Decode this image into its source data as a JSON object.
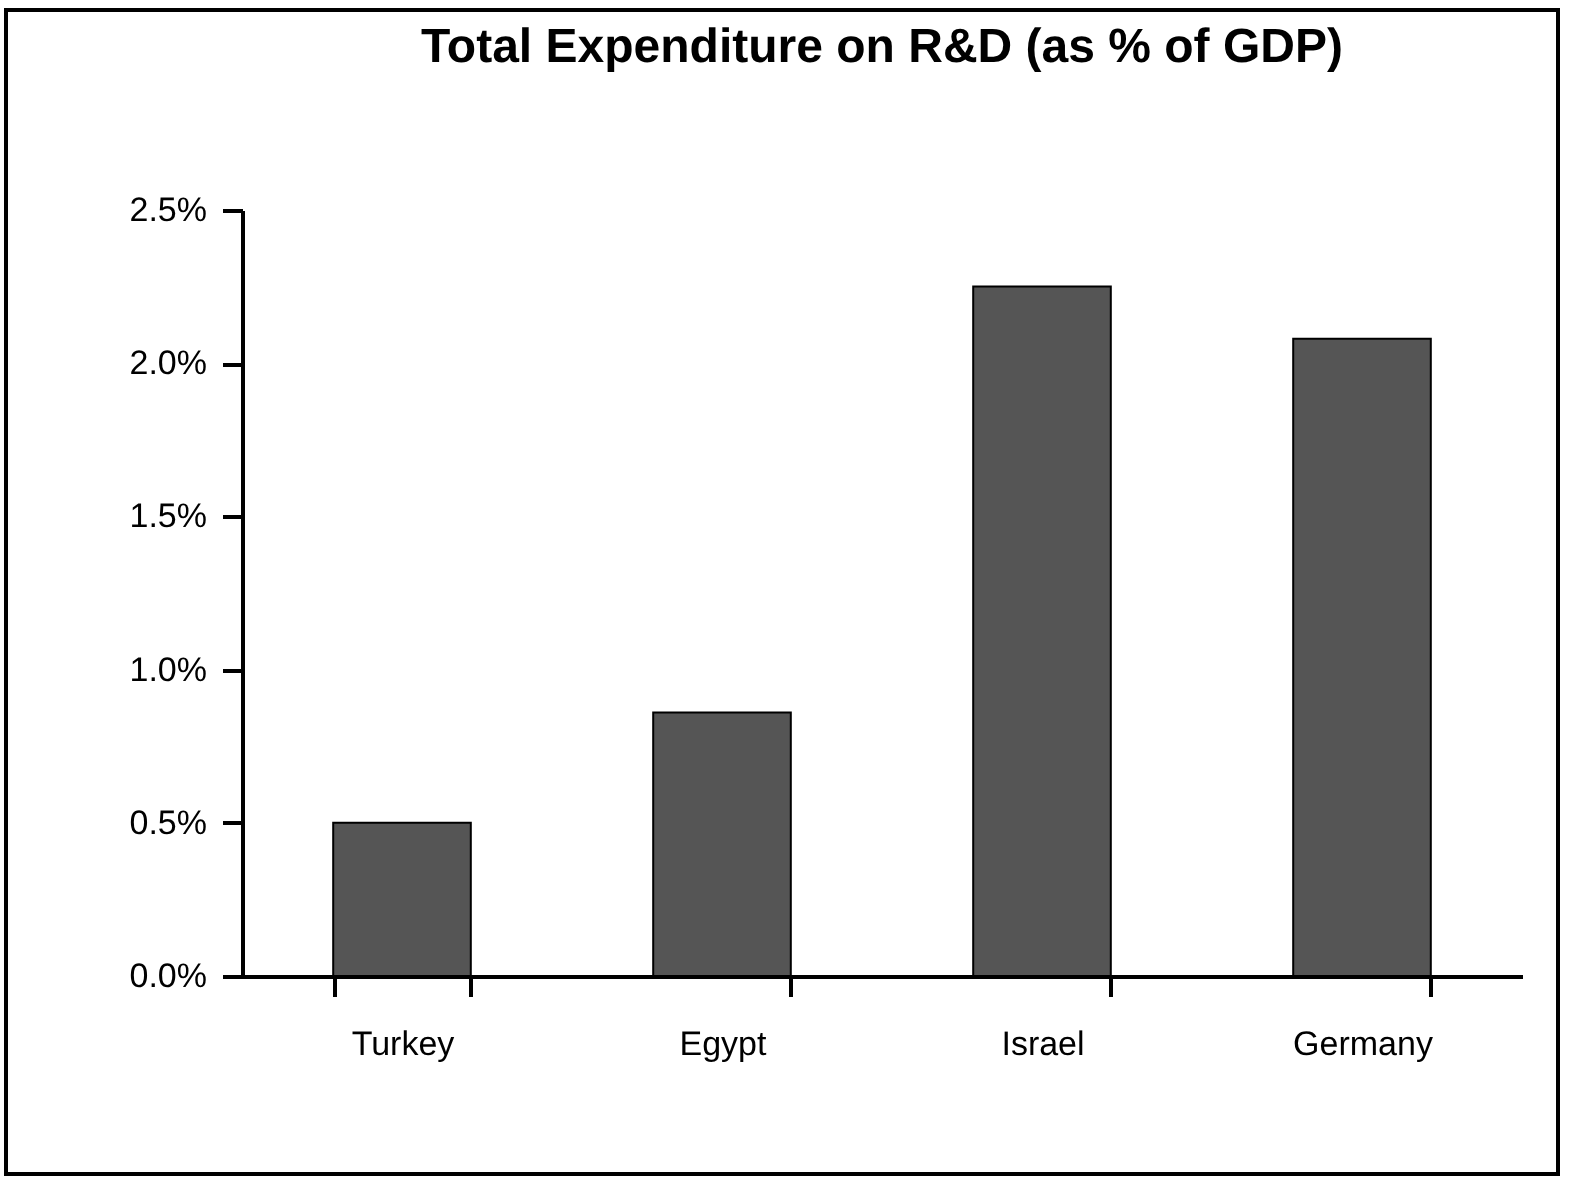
{
  "chart_data": {
    "type": "bar",
    "title": "Total Expenditure on R&D (as % of GDP)",
    "categories": [
      "Turkey",
      "Egypt",
      "Israel",
      "Germany"
    ],
    "values": [
      0.5,
      0.86,
      2.25,
      2.08
    ],
    "color": "#555555",
    "ylim": [
      0,
      2.5
    ],
    "yticks": [
      {
        "value": 0,
        "label": "0.0%"
      },
      {
        "value": 0.5,
        "label": "0.5%"
      },
      {
        "value": 1,
        "label": "1.0%"
      },
      {
        "value": 1.5,
        "label": "1.5%"
      },
      {
        "value": 2,
        "label": "2.0%"
      },
      {
        "value": 2.5,
        "label": "2.5%"
      }
    ],
    "grid": false
  }
}
